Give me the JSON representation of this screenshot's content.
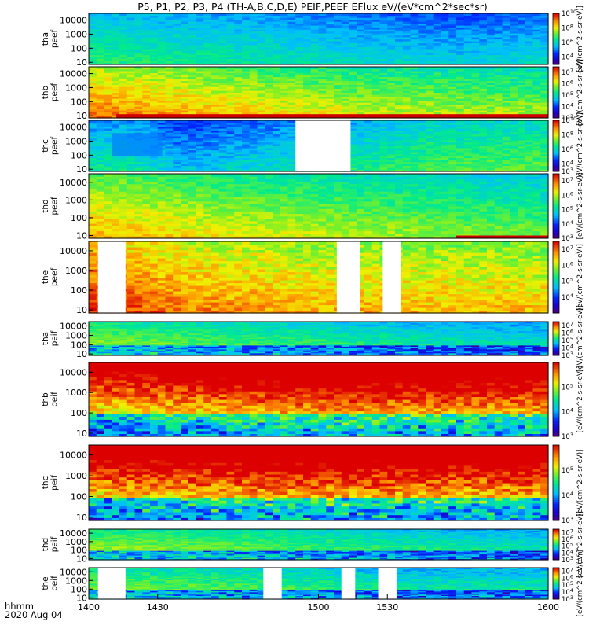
{
  "chart_data": {
    "type": "heatmap",
    "title": "P5, P1, P2, P3, P4 (TH-A,B,C,D,E) PEIF,PEEF EFlux eV/(eV*cm^2*sec*sr)",
    "x_axis": {
      "range": [
        1400,
        1600
      ],
      "ticks": [
        "1400",
        "1430",
        "1500",
        "1530",
        "1600"
      ],
      "units_label": "hhmm",
      "date_label": "2020 Aug 04"
    },
    "y_axis": {
      "scale": "log",
      "units": "eV",
      "range": [
        7,
        30000
      ],
      "ticks": [
        "10",
        "100",
        "1000",
        "10000"
      ]
    },
    "colorbar_label": "[eV/(cm^2-s-sr-eV)]",
    "panels": [
      {
        "probe": "tha",
        "product": "peef",
        "clim_exp": [
          3,
          10
        ],
        "tick_exp": [
          4,
          6,
          8,
          10
        ],
        "profile": [
          [
            0,
            0.46
          ],
          [
            0.5,
            0.38
          ],
          [
            0.8,
            0.33
          ],
          [
            1,
            0.36
          ]
        ],
        "gradient": -0.16,
        "texture": 0.05,
        "gaps": []
      },
      {
        "probe": "thb",
        "product": "peef",
        "clim_exp": [
          3,
          7.5
        ],
        "tick_exp": [
          3,
          4,
          5,
          6,
          7
        ],
        "profile": [
          [
            0,
            0.78
          ],
          [
            0.3,
            0.68
          ],
          [
            0.6,
            0.6
          ],
          [
            1,
            0.55
          ]
        ],
        "gradient": -0.22,
        "texture": 0.07,
        "gaps": [],
        "red_band": [
          1412,
          1600,
          13,
          7
        ]
      },
      {
        "probe": "thc",
        "product": "peef",
        "clim_exp": [
          3,
          10
        ],
        "tick_exp": [
          3,
          4,
          6,
          8,
          10
        ],
        "profile": [
          [
            0,
            0.4
          ],
          [
            0.08,
            0.42
          ],
          [
            0.2,
            0.3
          ],
          [
            0.5,
            0.4
          ],
          [
            0.75,
            0.5
          ],
          [
            1,
            0.52
          ]
        ],
        "gradient": -0.16,
        "texture": 0.06,
        "gaps": [
          [
            1490,
            1514
          ]
        ],
        "stripe_low": [
          1410,
          1432,
          0.68
        ]
      },
      {
        "probe": "thd",
        "product": "peef",
        "clim_exp": [
          3,
          7.5
        ],
        "tick_exp": [
          3,
          4,
          5,
          6,
          7
        ],
        "profile": [
          [
            0,
            0.7
          ],
          [
            0.3,
            0.62
          ],
          [
            0.6,
            0.56
          ],
          [
            1,
            0.5
          ]
        ],
        "gradient": -0.22,
        "texture": 0.06,
        "gaps": [],
        "red_band": [
          1560,
          1600,
          10,
          7
        ]
      },
      {
        "probe": "the",
        "product": "peef",
        "clim_exp": [
          3,
          7.5
        ],
        "tick_exp": [
          4,
          5,
          6,
          7
        ],
        "profile": [
          [
            0,
            0.88
          ],
          [
            0.2,
            0.78
          ],
          [
            0.5,
            0.72
          ],
          [
            1,
            0.7
          ]
        ],
        "gradient": -0.18,
        "texture": 0.08,
        "gaps": [
          [
            1404,
            1416
          ],
          [
            1508,
            1518
          ],
          [
            1528,
            1536
          ]
        ]
      },
      {
        "probe": "tha",
        "product": "peif",
        "clim_exp": [
          3,
          7.5
        ],
        "tick_exp": [
          3,
          4,
          5,
          6,
          7
        ],
        "profile": [
          [
            0,
            0.6
          ],
          [
            0.4,
            0.52
          ],
          [
            0.7,
            0.46
          ],
          [
            1,
            0.42
          ]
        ],
        "gradient": -0.2,
        "texture": 0.06,
        "gaps": []
      },
      {
        "probe": "thb",
        "product": "peif",
        "clim_exp": [
          3,
          6
        ],
        "tick_exp": [
          3,
          4,
          5
        ],
        "profile": [
          [
            0,
            0.82
          ],
          [
            0.5,
            0.94
          ],
          [
            1,
            0.9
          ]
        ],
        "gradient": 0.6,
        "texture": 0.1,
        "gaps": []
      },
      {
        "probe": "thc",
        "product": "peif",
        "clim_exp": [
          3,
          6
        ],
        "tick_exp": [
          3,
          4,
          5
        ],
        "profile": [
          [
            0,
            0.86
          ],
          [
            0.5,
            0.92
          ],
          [
            1,
            0.9
          ]
        ],
        "gradient": 0.65,
        "texture": 0.12,
        "gaps": []
      },
      {
        "probe": "thd",
        "product": "peif",
        "clim_exp": [
          3,
          7.5
        ],
        "tick_exp": [
          3,
          4,
          5,
          6,
          7
        ],
        "profile": [
          [
            0,
            0.62
          ],
          [
            0.4,
            0.55
          ],
          [
            0.7,
            0.48
          ],
          [
            1,
            0.44
          ]
        ],
        "gradient": -0.2,
        "texture": 0.06,
        "gaps": []
      },
      {
        "probe": "the",
        "product": "peif",
        "clim_exp": [
          3,
          7.5
        ],
        "tick_exp": [
          3,
          4,
          5,
          6,
          7
        ],
        "profile": [
          [
            0,
            0.58
          ],
          [
            0.4,
            0.52
          ],
          [
            0.7,
            0.45
          ],
          [
            1,
            0.46
          ]
        ],
        "gradient": -0.2,
        "texture": 0.07,
        "gaps": [
          [
            1404,
            1416
          ],
          [
            1476,
            1484
          ],
          [
            1510,
            1516
          ],
          [
            1526,
            1534
          ]
        ]
      }
    ]
  }
}
